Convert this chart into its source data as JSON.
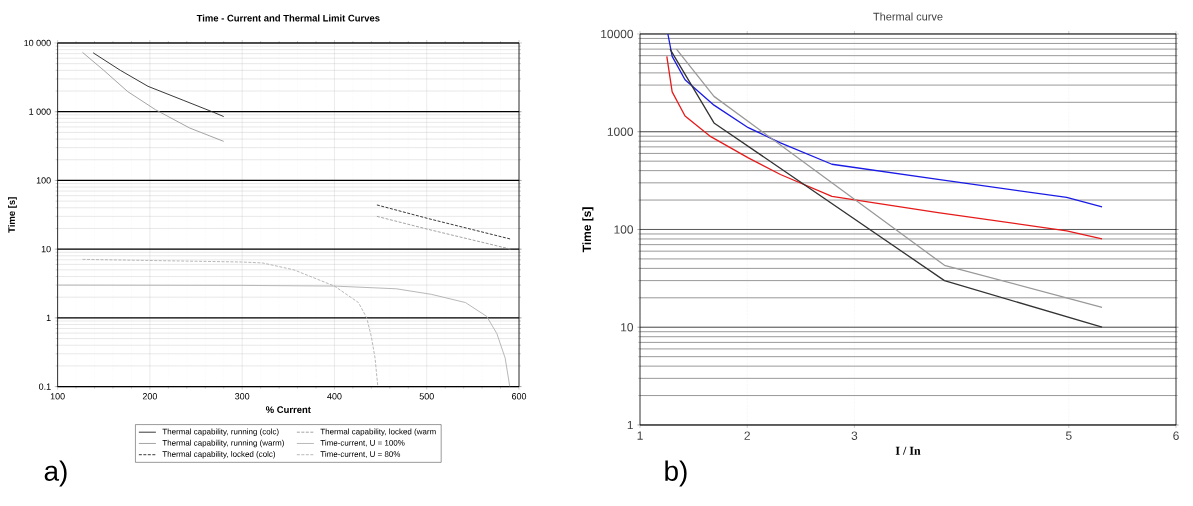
{
  "chart_data": [
    {
      "type": "line",
      "title": "Time - Current and Thermal Limit Curves",
      "xlabel": "% Current",
      "ylabel": "Time [s]",
      "log": "y",
      "grid": true,
      "legend": "bottom",
      "xlim": [
        100,
        600
      ],
      "xticks": [
        100,
        200,
        300,
        400,
        500,
        600
      ],
      "ylim": [
        0.1,
        10000
      ],
      "yticks": [
        0.1,
        1,
        10,
        100,
        {
          "value": 1000,
          "label": "1 000"
        },
        {
          "value": 10000,
          "label": "10 000"
        }
      ],
      "annotations": [
        "a)"
      ],
      "series": [
        {
          "name": "Thermal capability, running (colc)",
          "color": "#222222",
          "line_style": "solid",
          "x": [
            138.5,
            168,
            198,
            236,
            269,
            280
          ],
          "values": [
            7200,
            4000,
            2340,
            1470,
            980,
            850
          ]
        },
        {
          "name": "Thermal capability, running (warm)",
          "color": "#999999",
          "line_style": "solid",
          "x": [
            127,
            150,
            176,
            206,
            243,
            280
          ],
          "values": [
            7300,
            4000,
            1960,
            1070,
            580,
            370
          ]
        },
        {
          "name": "Thermal capability, locked (colc)",
          "color": "#222222",
          "line_style": "dashed",
          "x": [
            446,
            501,
            591
          ],
          "values": [
            44,
            28,
            14
          ]
        },
        {
          "name": "Thermal capability, locked (warm",
          "color": "#999999",
          "line_style": "dashed",
          "x": [
            446,
            501,
            591
          ],
          "values": [
            30,
            19.5,
            10
          ]
        },
        {
          "name": "Time-current, U = 100%",
          "color": "#b0b0b0",
          "line_style": "solid",
          "x": [
            100,
            299,
            400,
            467,
            505,
            542,
            565,
            576,
            585,
            590
          ],
          "values": [
            3.0,
            2.97,
            2.9,
            2.65,
            2.2,
            1.67,
            1.05,
            0.59,
            0.26,
            0.1
          ]
        },
        {
          "name": "Time-current, U = 80%",
          "color": "#b0b0b0",
          "line_style": "dashed",
          "x": [
            127,
            299,
            322,
            356,
            400,
            426,
            435,
            440,
            444,
            447
          ],
          "values": [
            7.1,
            6.5,
            6.3,
            5.0,
            2.9,
            1.67,
            1.0,
            0.53,
            0.26,
            0.1
          ]
        }
      ]
    },
    {
      "type": "line",
      "title": "Thermal curve",
      "xlabel": "I / In",
      "ylabel": "Time [s]",
      "log": "y",
      "grid": true,
      "xlim": [
        1,
        6
      ],
      "xticks": [
        1,
        2,
        3,
        5,
        6
      ],
      "ylim": [
        1,
        10000
      ],
      "yticks": [
        1,
        10,
        100,
        1000,
        10000
      ],
      "annotations": [
        "b)"
      ],
      "series": [
        {
          "color": "#1a1ae6",
          "x": [
            1.26,
            1.3,
            1.42,
            1.69,
            2.01,
            2.31,
            2.79,
            3.78,
            4.98,
            5.31
          ],
          "values": [
            10000,
            5900,
            3400,
            1870,
            1100,
            770,
            465,
            325,
            213,
            170
          ]
        },
        {
          "color": "#e61a1a",
          "x": [
            1.25,
            1.3,
            1.42,
            1.66,
            2.01,
            2.31,
            2.79,
            3.78,
            4.98,
            5.31
          ],
          "values": [
            5900,
            2560,
            1450,
            890,
            540,
            365,
            218,
            149,
            97,
            80
          ]
        },
        {
          "color": "#333333",
          "x": [
            1.28,
            1.69,
            3.84,
            5.31
          ],
          "values": [
            7000,
            1230,
            30,
            10
          ]
        },
        {
          "color": "#999999",
          "x": [
            1.34,
            1.69,
            3.84,
            5.31
          ],
          "values": [
            7000,
            2300,
            43,
            16
          ]
        }
      ]
    }
  ]
}
